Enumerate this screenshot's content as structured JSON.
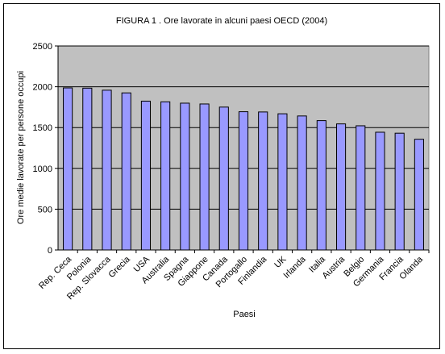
{
  "chart_data": {
    "type": "bar",
    "title": "FIGURA 1 . Ore lavorate in alcuni paesi OECD (2004)",
    "xlabel": "Paesi",
    "ylabel": "Ore medie lavorate per persone occupi",
    "ylim": [
      0,
      2500
    ],
    "yticks": [
      0,
      500,
      1000,
      1500,
      2000,
      2500
    ],
    "grid": true,
    "legend": "none",
    "categories": [
      "Rep. Ceca",
      "Polonia",
      "Rep. Slovacca",
      "Grecia",
      "USA",
      "Australia",
      "Spagna",
      "Giappone",
      "Canada",
      "Portogallo",
      "Finlandia",
      "UK",
      "Irlanda",
      "Italia",
      "Austria",
      "Belgio",
      "Germania",
      "Francia",
      "Olanda"
    ],
    "values": [
      1986,
      1983,
      1958,
      1925,
      1824,
      1816,
      1799,
      1789,
      1751,
      1694,
      1691,
      1669,
      1642,
      1585,
      1545,
      1522,
      1443,
      1431,
      1357
    ],
    "colors": {
      "bar": "#9999ff",
      "plot_bg": "#c0c0c0",
      "grid": "#000000"
    }
  }
}
